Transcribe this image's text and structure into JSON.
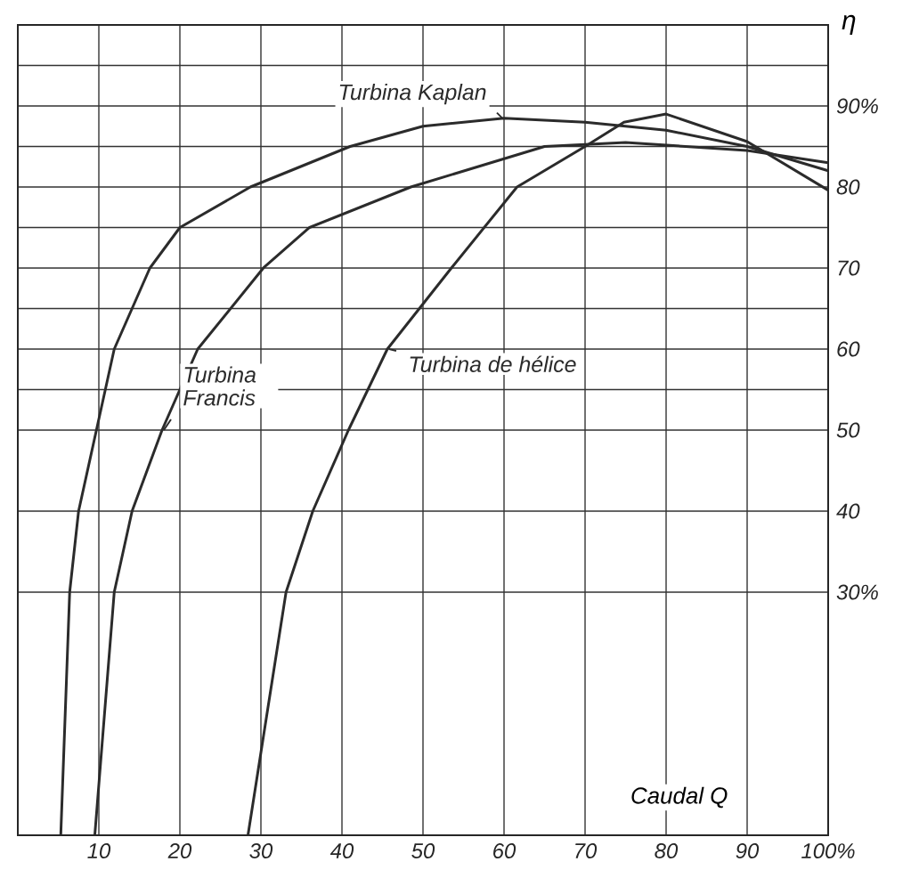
{
  "chart_data": {
    "type": "line",
    "xlabel": "Caudal Q",
    "ylabel": "η",
    "xlim": [
      0,
      100
    ],
    "ylim": [
      0,
      100
    ],
    "xticks": [
      10,
      20,
      30,
      40,
      50,
      60,
      70,
      80,
      90,
      {
        "value": 100,
        "label": "100%"
      }
    ],
    "yticks": [
      {
        "value": 30,
        "label": "30%"
      },
      40,
      50,
      {
        "value": 55,
        "label": null
      },
      60,
      {
        "value": 65,
        "label": null
      },
      70,
      {
        "value": 75,
        "label": null
      },
      80,
      {
        "value": 85,
        "label": null
      },
      {
        "value": 90,
        "label": "90%"
      },
      {
        "value": 95,
        "label": null
      }
    ],
    "grid": true,
    "line_style": "solid",
    "series": [
      {
        "name": "Turbina Kaplan",
        "color": "#2b2b2b",
        "x": [
          5.3,
          6.4,
          7.5,
          9.7,
          11.9,
          16.3,
          20,
          28.7,
          41,
          50,
          60,
          70,
          80,
          90,
          100
        ],
        "values": [
          0,
          30,
          40,
          50,
          60,
          70,
          75,
          80,
          85,
          87.5,
          88.5,
          88,
          87,
          85,
          82
        ]
      },
      {
        "name": "Turbina Francis",
        "color": "#2b2b2b",
        "x": [
          9.5,
          11.9,
          14.1,
          17.8,
          22.2,
          30.3,
          36,
          48.5,
          65,
          75,
          90,
          100
        ],
        "values": [
          0,
          30,
          40,
          50,
          60,
          70,
          75,
          80,
          85,
          85.5,
          84.5,
          83
        ]
      },
      {
        "name": "Turbina de hélice",
        "color": "#2b2b2b",
        "x": [
          28.4,
          33.1,
          36.4,
          40.8,
          45.6,
          53.5,
          61.6,
          70,
          74.8,
          80,
          90,
          100
        ],
        "values": [
          0,
          30,
          40,
          50,
          60,
          70,
          80,
          85,
          88,
          89,
          85.6,
          79.6
        ]
      }
    ]
  }
}
